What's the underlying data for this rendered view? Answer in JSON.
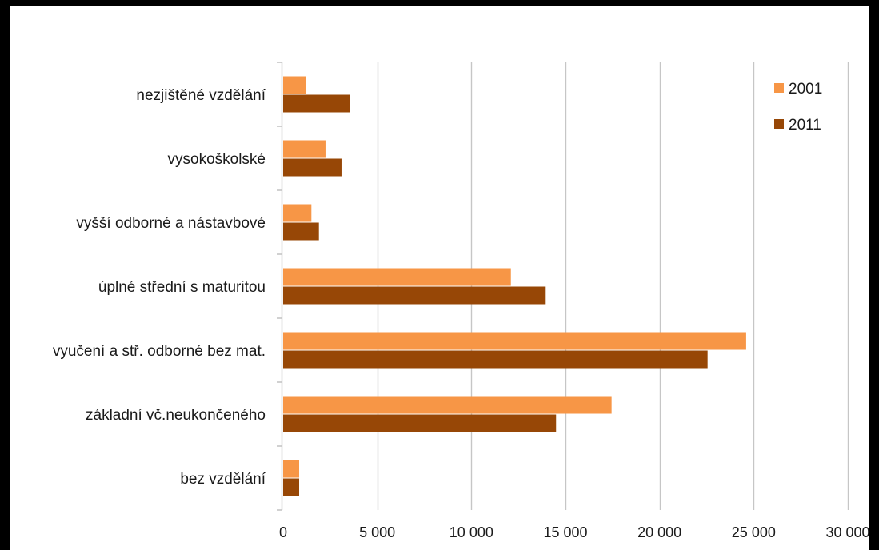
{
  "chart_data": {
    "type": "bar",
    "orientation": "horizontal",
    "categories": [
      "nezjištěné vzdělání",
      "vysokoškolské",
      "vyšší odborné a nástavbové",
      "úplné střední s maturitou",
      "vyučení a stř. odborné bez mat.",
      "základní vč.neukončeného",
      "bez vzdělání"
    ],
    "series": [
      {
        "name": "2001",
        "color": "#f79646",
        "values": [
          1200,
          2250,
          1500,
          12100,
          24600,
          17450,
          850
        ]
      },
      {
        "name": "2011",
        "color": "#974706",
        "values": [
          3550,
          3100,
          1900,
          13950,
          22550,
          14500,
          850
        ]
      }
    ],
    "xlim": [
      0,
      30000
    ],
    "xticks": [
      0,
      5000,
      10000,
      15000,
      20000,
      25000,
      30000
    ],
    "xtick_labels": [
      "0",
      "5 000",
      "10 000",
      "15 000",
      "20 000",
      "25 000",
      "30 000"
    ],
    "grid": "vertical",
    "legend_position": "top-right",
    "title": "",
    "xlabel": "",
    "ylabel": ""
  }
}
